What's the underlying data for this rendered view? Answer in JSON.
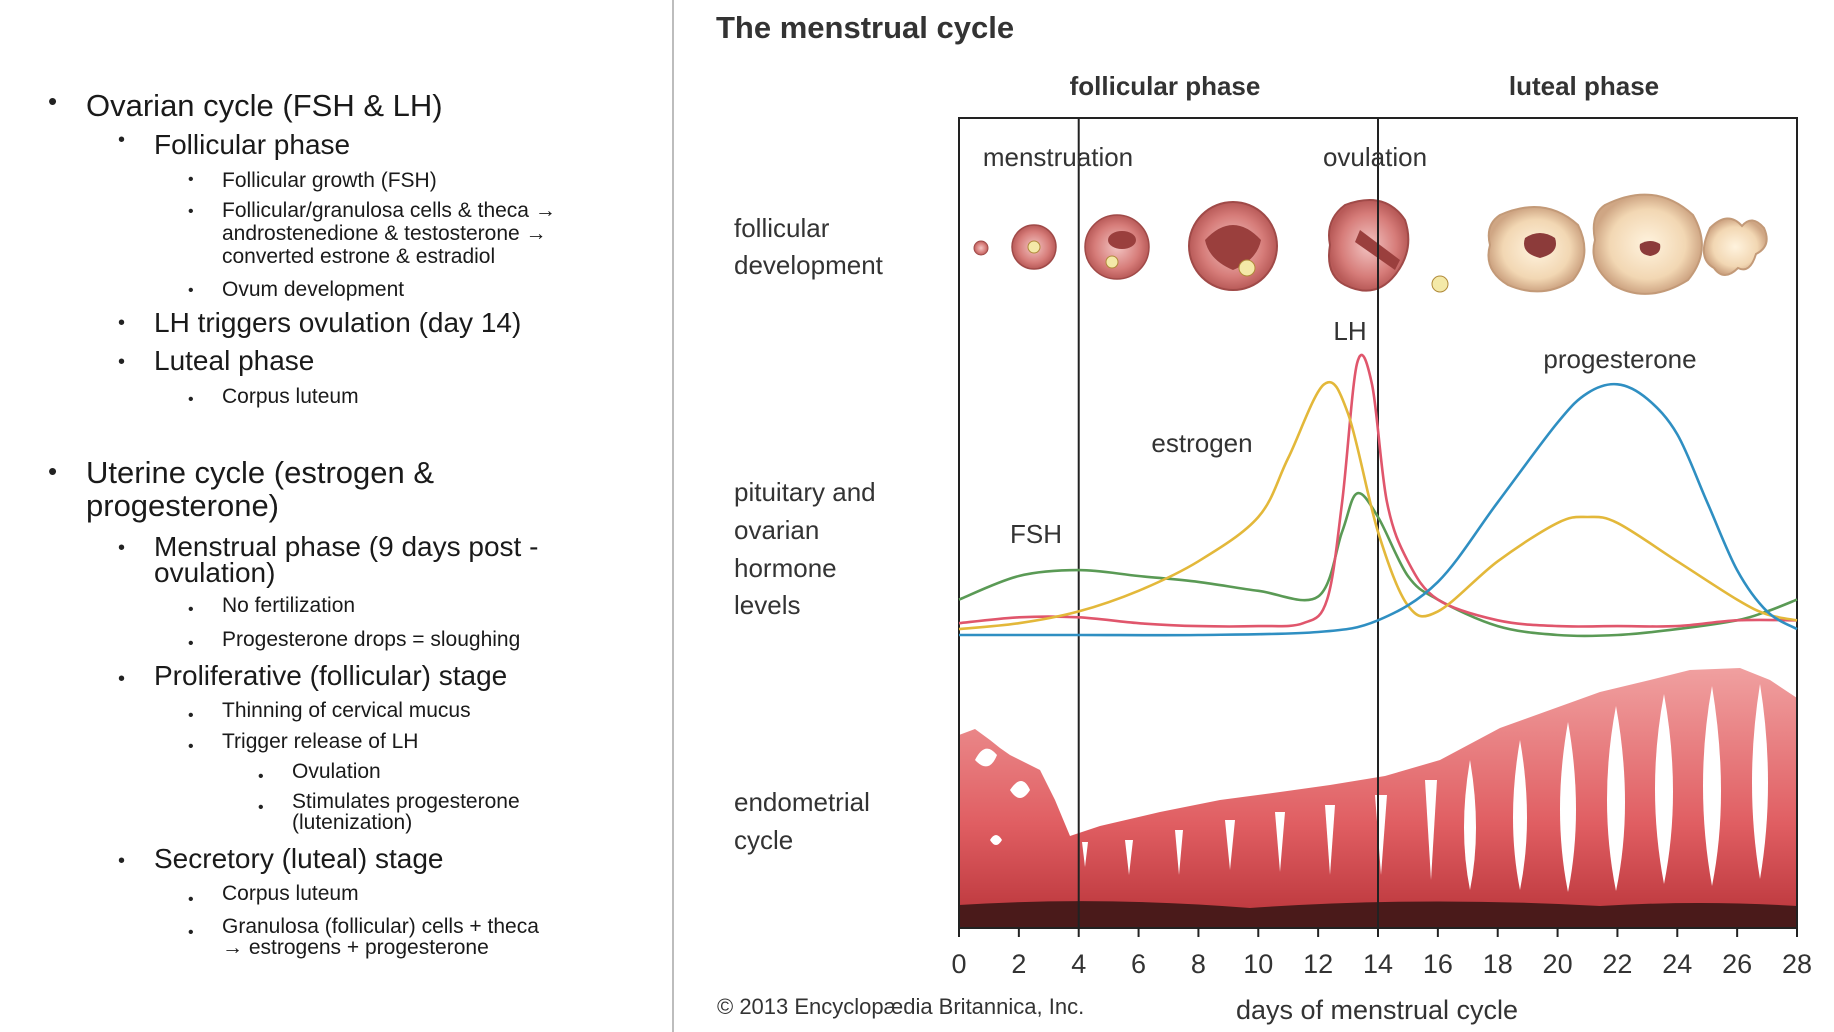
{
  "outline": {
    "ovarian": {
      "title": "Ovarian cycle (FSH & LH)",
      "follicular": "Follicular phase",
      "follicular_items": [
        "Follicular growth (FSH)",
        "Follicular/granulosa cells & theca →",
        "androstenedione & testosterone →",
        "converted estrone & estradiol",
        "Ovum development"
      ],
      "lh": "LH triggers ovulation (day 14)",
      "luteal": "Luteal phase",
      "luteal_item": "Corpus luteum"
    },
    "uterine": {
      "title_1": "Uterine cycle (estrogen &",
      "title_2": "progesterone)",
      "menstrual_1": "Menstrual phase (9 days post -",
      "menstrual_2": "ovulation)",
      "menstrual_items": [
        "No fertilization",
        "Progesterone drops = sloughing"
      ],
      "proliferative": "Proliferative (follicular) stage",
      "proliferative_items": [
        "Thinning of cervical mucus",
        "Trigger release of LH"
      ],
      "lh_subitems": [
        "Ovulation",
        "Stimulates progesterone",
        "(lutenization)"
      ],
      "secretory": "Secretory (luteal) stage",
      "secretory_items": [
        "Corpus luteum",
        "Granulosa (follicular) cells + theca",
        "→ estrogens + progesterone"
      ]
    }
  },
  "diagram": {
    "title": "The menstrual cycle",
    "phase_follicular": "follicular phase",
    "phase_luteal": "luteal phase",
    "marker_menstruation": "menstruation",
    "marker_ovulation": "ovulation",
    "row_follicular_1": "follicular",
    "row_follicular_2": "development",
    "row_hormone_1": "pituitary and",
    "row_hormone_2": "ovarian",
    "row_hormone_3": "hormone",
    "row_hormone_4": "levels",
    "row_endometrial_1": "endometrial",
    "row_endometrial_2": "cycle",
    "label_lh": "LH",
    "label_progesterone": "progesterone",
    "label_estrogen": "estrogen",
    "label_fsh": "FSH",
    "copyright": "© 2013 Encyclopædia Britannica, Inc.",
    "xlabel": "days of menstrual cycle"
  },
  "chart_data": {
    "type": "line",
    "xlabel": "days of menstrual cycle",
    "x_ticks": [
      0,
      2,
      4,
      6,
      8,
      10,
      12,
      14,
      16,
      18,
      20,
      22,
      24,
      26,
      28
    ],
    "xlim": [
      0,
      28
    ],
    "ylim": [
      0,
      100
    ],
    "markers": [
      {
        "label": "menstruation",
        "day": 4
      },
      {
        "label": "ovulation",
        "day": 14
      }
    ],
    "series": [
      {
        "name": "FSH",
        "color": "#5a9a55",
        "x": [
          0,
          2,
          4,
          6,
          8,
          10,
          12,
          12.8,
          13.3,
          14,
          15,
          16,
          18,
          20,
          22,
          24,
          26,
          27,
          28
        ],
        "y": [
          12,
          20,
          22,
          20,
          18,
          15,
          13,
          35,
          48,
          40,
          20,
          12,
          3,
          0,
          0,
          2,
          5,
          8,
          12
        ]
      },
      {
        "name": "LH",
        "color": "#e0566c",
        "x": [
          0,
          2,
          4,
          6,
          8,
          10,
          11.5,
          12.3,
          12.8,
          13.3,
          13.8,
          14.3,
          15,
          16,
          18,
          20,
          22,
          24,
          26,
          28
        ],
        "y": [
          4,
          6,
          6,
          4,
          3,
          3,
          4,
          12,
          45,
          92,
          85,
          45,
          25,
          12,
          5,
          3,
          3,
          3,
          5,
          5
        ]
      },
      {
        "name": "estrogen",
        "color": "#e3b83a",
        "x": [
          0,
          2,
          4,
          6,
          8,
          10,
          11,
          12.2,
          13,
          14,
          15,
          16,
          18,
          20,
          21,
          22,
          24,
          26,
          27,
          28
        ],
        "y": [
          2,
          4,
          8,
          15,
          25,
          40,
          60,
          85,
          75,
          35,
          10,
          8,
          25,
          38,
          40,
          38,
          25,
          12,
          7,
          5
        ]
      },
      {
        "name": "progesterone",
        "color": "#2f8fc2",
        "x": [
          0,
          4,
          8,
          12,
          14,
          16,
          18,
          20,
          21,
          22,
          23,
          24,
          25,
          26,
          27,
          28
        ],
        "y": [
          0,
          0,
          0,
          1,
          5,
          18,
          45,
          72,
          82,
          85,
          80,
          68,
          45,
          22,
          8,
          2
        ]
      }
    ]
  }
}
